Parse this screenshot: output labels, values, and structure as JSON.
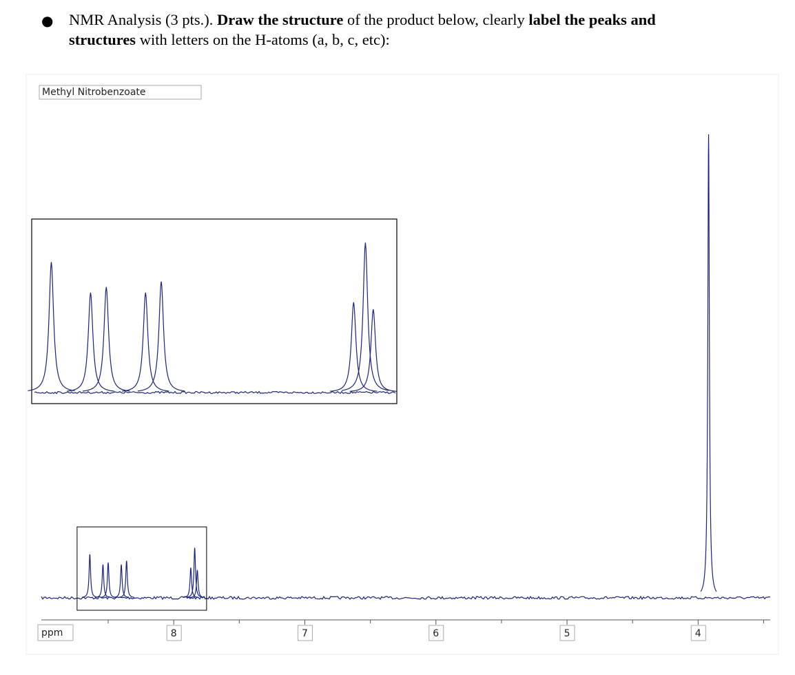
{
  "instruction": {
    "lines": [
      [
        {
          "text": "NMR Analysis (3 pts.). ",
          "bold": false
        },
        {
          "text": "Draw the structure",
          "bold": true
        },
        {
          "text": " of the product below, clearly ",
          "bold": false
        },
        {
          "text": "label the peaks and",
          "bold": true
        }
      ],
      [
        {
          "text": "structures",
          "bold": true
        },
        {
          "text": " with letters on the H-atoms (a, b, c, etc):",
          "bold": false
        }
      ]
    ]
  },
  "spectrum": {
    "title": "Methyl Nitrobenzoate",
    "x_label": "ppm",
    "color": "#1a237e",
    "xlim": [
      9.01,
      3.45
    ],
    "ylim": [
      0,
      100
    ],
    "xticks": [
      8,
      7,
      6,
      5,
      4
    ],
    "minor_xticks": [
      8.5,
      7.5,
      6.5,
      5.5,
      4.5,
      3.5
    ],
    "peaks": {
      "ppm": [
        8.64,
        8.54,
        8.5,
        8.4,
        8.36,
        7.87,
        7.84,
        7.82,
        3.92
      ],
      "intensity": [
        9.4,
        7.2,
        7.6,
        7.2,
        8.0,
        6.5,
        10.8,
        6.0,
        100
      ]
    },
    "inset": {
      "xlim": [
        8.69,
        7.76
      ],
      "ylim": [
        -0.8,
        12.5
      ]
    }
  }
}
